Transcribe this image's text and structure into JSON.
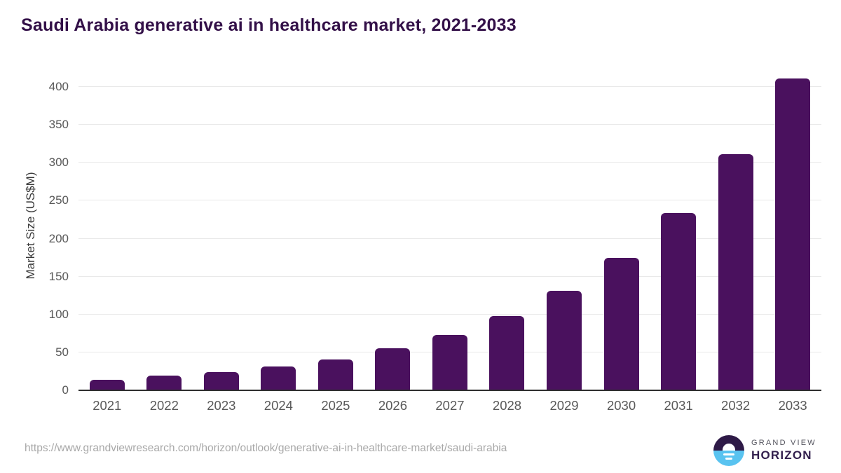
{
  "page": {
    "title": "Saudi Arabia generative ai in healthcare market, 2021-2033"
  },
  "chart_data": {
    "type": "bar",
    "title": "Saudi Arabia generative ai in healthcare market, 2021-2033",
    "categories": [
      "2021",
      "2022",
      "2023",
      "2024",
      "2025",
      "2026",
      "2027",
      "2028",
      "2029",
      "2030",
      "2031",
      "2032",
      "2033"
    ],
    "values": [
      14,
      19,
      24,
      31,
      41,
      55,
      73,
      98,
      131,
      175,
      234,
      311,
      411
    ],
    "xlabel": "",
    "ylabel": "Market Size (US$M)",
    "ylim": [
      0,
      400
    ],
    "yticks": [
      0,
      50,
      100,
      150,
      200,
      250,
      300,
      350,
      400
    ],
    "grid": true,
    "legend": "none",
    "bar_color": "#4a115e"
  },
  "footer": {
    "source_url": "https://www.grandviewresearch.com/horizon/outlook/generative-ai-in-healthcare-market/saudi-arabia",
    "logo": {
      "top": "GRAND VIEW",
      "bottom": "HORIZON"
    }
  },
  "colors": {
    "title_text": "#331048",
    "bar": "#4a115e",
    "gridline": "#e9e9e9",
    "axis_line": "#2f2f2f",
    "tick_label": "#595959",
    "url_text": "#a8a8a8",
    "logo_purple": "#2e1a47",
    "logo_blue": "#59c3f0"
  }
}
